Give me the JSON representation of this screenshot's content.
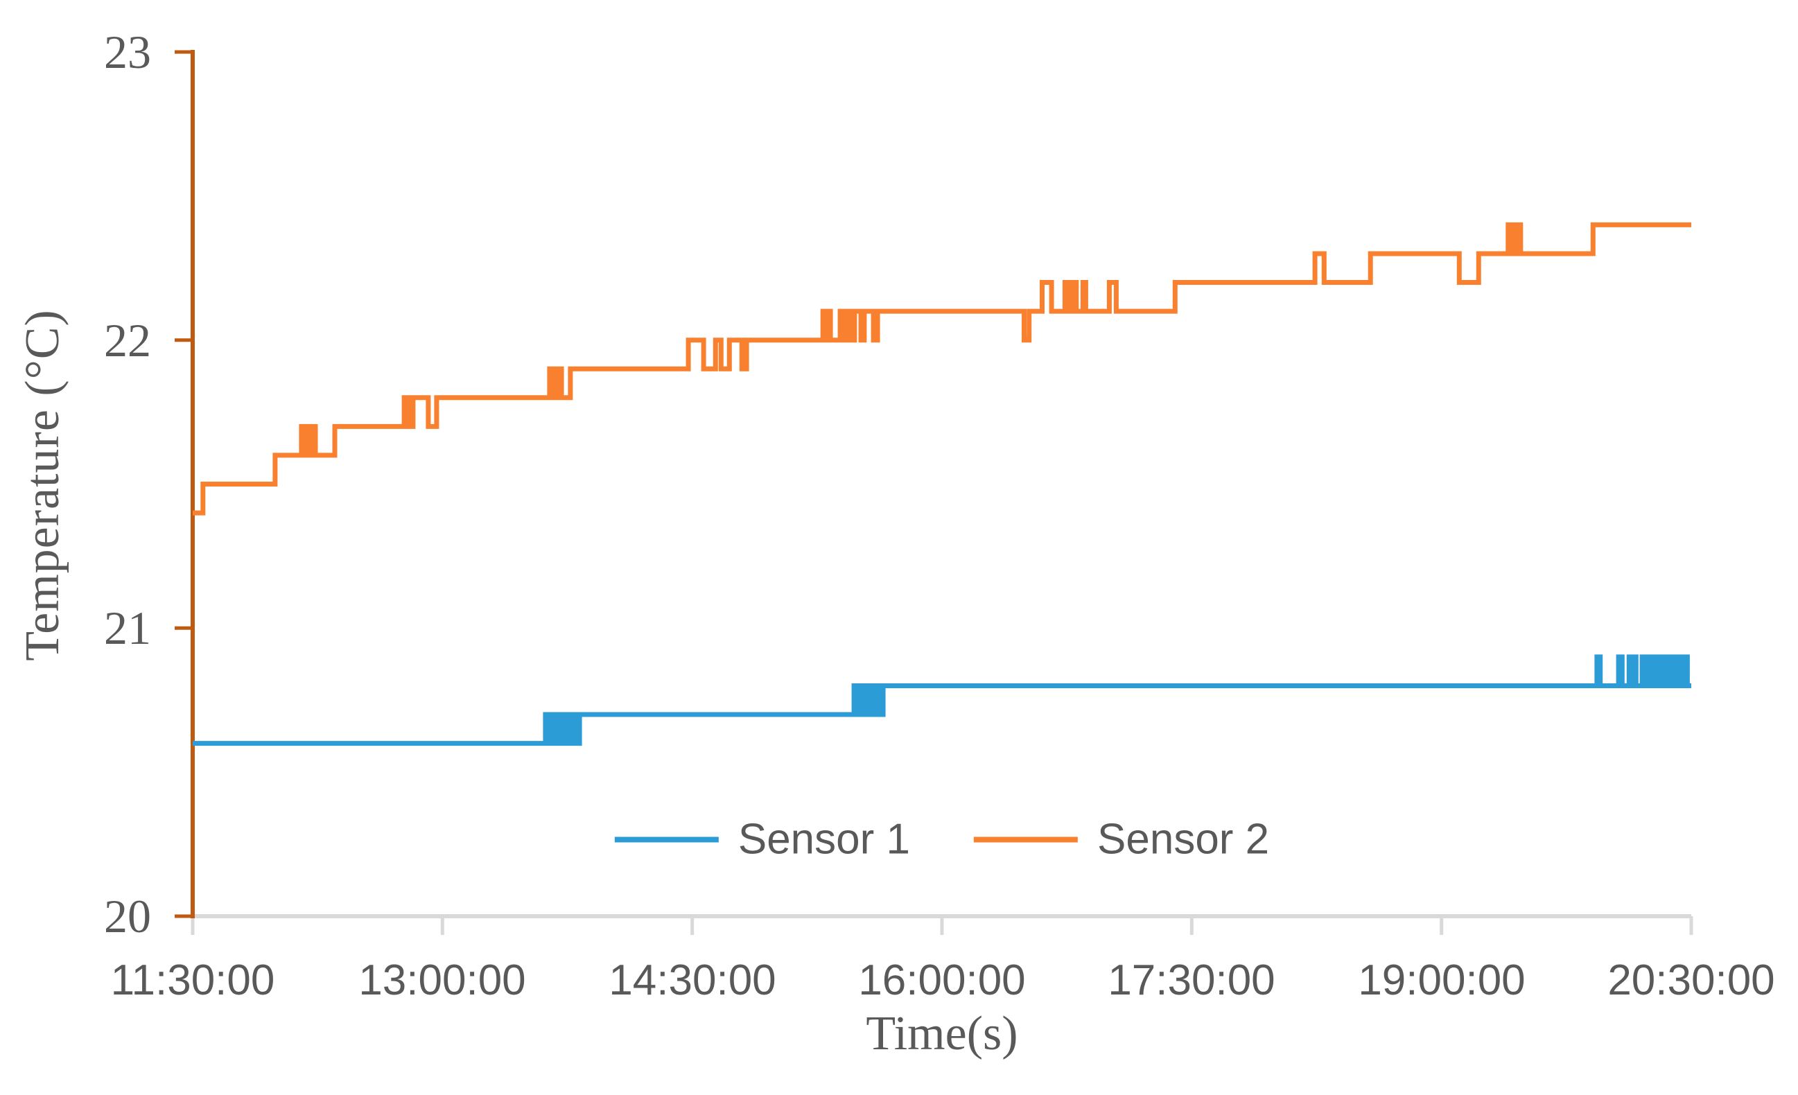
{
  "page": {
    "background": "#ffffff"
  },
  "colors": {
    "sensor1": "#2C9CD7",
    "sensor2": "#F8802E",
    "value_axis": "#C05A11",
    "category_axis": "#D9D9D9",
    "text": "#595959"
  },
  "chart_data": {
    "type": "line",
    "interpolation": "step-after",
    "title": "",
    "xlabel": "Time(s)",
    "ylabel": "Temperature (°C)",
    "x_unit": "minutes after 11:30:00",
    "x_ticks": [
      "11:30:00",
      "13:00:00",
      "14:30:00",
      "16:00:00",
      "17:30:00",
      "19:00:00",
      "20:30:00"
    ],
    "x_tick_minutes": [
      0,
      90,
      180,
      270,
      360,
      450,
      540
    ],
    "y_ticks": [
      "20",
      "21",
      "22",
      "23"
    ],
    "y_tick_values": [
      20,
      21,
      22,
      23
    ],
    "ylim": [
      20,
      23
    ],
    "xlim_minutes": [
      0,
      540
    ],
    "grid": "off",
    "legend": [
      "Sensor 1",
      "Sensor 2"
    ],
    "legend_position": "bottom-center",
    "series": [
      {
        "name": "Sensor 1",
        "color": "#2C9CD7",
        "points_min_degC": [
          [
            0,
            20.6
          ],
          [
            127.1,
            20.7
          ],
          [
            127.8,
            20.6
          ],
          [
            128.4,
            20.7
          ],
          [
            129.1,
            20.6
          ],
          [
            129.7,
            20.7
          ],
          [
            130.4,
            20.6
          ],
          [
            131.0,
            20.7
          ],
          [
            131.7,
            20.6
          ],
          [
            132.3,
            20.7
          ],
          [
            133.0,
            20.6
          ],
          [
            133.6,
            20.7
          ],
          [
            134.3,
            20.6
          ],
          [
            134.9,
            20.7
          ],
          [
            135.6,
            20.6
          ],
          [
            136.2,
            20.7
          ],
          [
            136.9,
            20.6
          ],
          [
            137.3,
            20.7
          ],
          [
            138.4,
            20.6
          ],
          [
            139.4,
            20.7
          ],
          [
            238.3,
            20.8
          ],
          [
            239.0,
            20.7
          ],
          [
            239.6,
            20.8
          ],
          [
            240.3,
            20.7
          ],
          [
            240.9,
            20.8
          ],
          [
            241.6,
            20.7
          ],
          [
            242.2,
            20.8
          ],
          [
            242.9,
            20.7
          ],
          [
            243.5,
            20.8
          ],
          [
            244.2,
            20.7
          ],
          [
            244.8,
            20.8
          ],
          [
            245.5,
            20.7
          ],
          [
            246.1,
            20.8
          ],
          [
            246.8,
            20.7
          ],
          [
            247.4,
            20.8
          ],
          [
            248.1,
            20.7
          ],
          [
            248.8,
            20.8
          ],
          [
            506.0,
            20.9
          ],
          [
            507.2,
            20.8
          ],
          [
            513.8,
            20.9
          ],
          [
            515.1,
            20.8
          ],
          [
            517.6,
            20.9
          ],
          [
            518.5,
            20.8
          ],
          [
            519.2,
            20.9
          ],
          [
            520.1,
            20.8
          ],
          [
            522.3,
            20.9
          ],
          [
            523.2,
            20.8
          ],
          [
            523.9,
            20.9
          ],
          [
            524.8,
            20.8
          ],
          [
            525.5,
            20.9
          ],
          [
            526.4,
            20.8
          ],
          [
            527.0,
            20.9
          ],
          [
            527.7,
            20.8
          ],
          [
            528.4,
            20.9
          ],
          [
            529.2,
            20.8
          ],
          [
            529.8,
            20.9
          ],
          [
            530.7,
            20.8
          ],
          [
            531.3,
            20.9
          ],
          [
            531.9,
            20.8
          ],
          [
            533.4,
            20.9
          ],
          [
            534.9,
            20.8
          ],
          [
            535.9,
            20.9
          ],
          [
            536.7,
            20.8
          ],
          [
            537.3,
            20.9
          ],
          [
            538.6,
            20.8
          ],
          [
            540,
            20.8
          ]
        ]
      },
      {
        "name": "Sensor 2",
        "color": "#F8802E",
        "points_min_degC": [
          [
            0,
            21.4
          ],
          [
            3.7,
            21.5
          ],
          [
            29.7,
            21.6
          ],
          [
            39.2,
            21.7
          ],
          [
            40.3,
            21.6
          ],
          [
            41.0,
            21.7
          ],
          [
            42.1,
            21.6
          ],
          [
            42.8,
            21.7
          ],
          [
            44.2,
            21.6
          ],
          [
            51.2,
            21.7
          ],
          [
            76.2,
            21.8
          ],
          [
            77.2,
            21.7
          ],
          [
            77.9,
            21.8
          ],
          [
            78.8,
            21.7
          ],
          [
            79.4,
            21.8
          ],
          [
            84.9,
            21.7
          ],
          [
            87.9,
            21.8
          ],
          [
            128.6,
            21.9
          ],
          [
            129.8,
            21.8
          ],
          [
            130.4,
            21.9
          ],
          [
            131.5,
            21.8
          ],
          [
            132.1,
            21.9
          ],
          [
            132.9,
            21.8
          ],
          [
            136.1,
            21.9
          ],
          [
            178.6,
            22.0
          ],
          [
            184.1,
            21.9
          ],
          [
            188.4,
            22.0
          ],
          [
            190.4,
            21.9
          ],
          [
            193.4,
            22.0
          ],
          [
            197.9,
            21.9
          ],
          [
            199.6,
            22.0
          ],
          [
            227.1,
            22.1
          ],
          [
            228.1,
            22.0
          ],
          [
            228.8,
            22.1
          ],
          [
            229.8,
            22.0
          ],
          [
            233.3,
            22.1
          ],
          [
            234.3,
            22.0
          ],
          [
            235.0,
            22.1
          ],
          [
            236.1,
            22.0
          ],
          [
            236.8,
            22.1
          ],
          [
            237.1,
            22.0
          ],
          [
            238.5,
            22.1
          ],
          [
            240.8,
            22.0
          ],
          [
            242.0,
            22.1
          ],
          [
            245.3,
            22.0
          ],
          [
            246.8,
            22.1
          ],
          [
            299.6,
            22.0
          ],
          [
            301.4,
            22.1
          ],
          [
            306.1,
            22.2
          ],
          [
            309.5,
            22.1
          ],
          [
            314.3,
            22.2
          ],
          [
            315.4,
            22.1
          ],
          [
            316.1,
            22.2
          ],
          [
            317.3,
            22.1
          ],
          [
            318.0,
            22.2
          ],
          [
            318.4,
            22.1
          ],
          [
            320.8,
            22.2
          ],
          [
            321.8,
            22.1
          ],
          [
            330.3,
            22.2
          ],
          [
            332.8,
            22.1
          ],
          [
            354.0,
            22.2
          ],
          [
            404.4,
            22.3
          ],
          [
            407.7,
            22.2
          ],
          [
            424.4,
            22.3
          ],
          [
            456.4,
            22.2
          ],
          [
            463.4,
            22.3
          ],
          [
            474.0,
            22.4
          ],
          [
            475.1,
            22.3
          ],
          [
            475.8,
            22.4
          ],
          [
            477.0,
            22.3
          ],
          [
            477.6,
            22.4
          ],
          [
            478.5,
            22.3
          ],
          [
            504.6,
            22.4
          ],
          [
            540,
            22.4
          ]
        ]
      }
    ]
  }
}
